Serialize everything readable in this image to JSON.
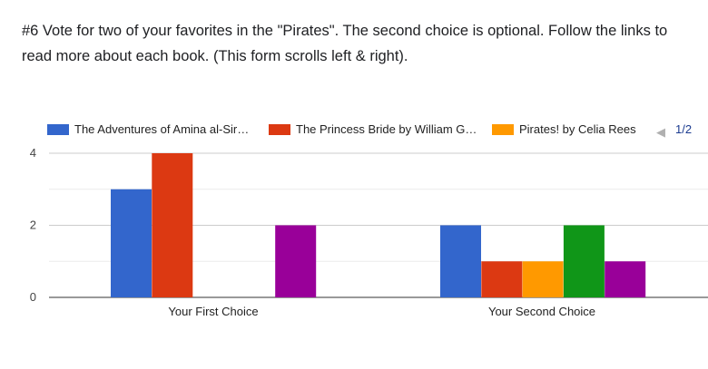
{
  "question": {
    "text": "#6 Vote for two of your favorites in the \"Pirates\". The second choice is optional.  Follow the links to read more about each book.  (This form scrolls left & right)."
  },
  "legend": {
    "items": [
      {
        "label": "The Adventures of Amina al-Sir…",
        "color": "#3366cc"
      },
      {
        "label": "The Princess Bride by William G…",
        "color": "#dc3912"
      },
      {
        "label": "Pirates! by Celia Rees",
        "color": "#ff9900"
      }
    ],
    "pager": {
      "prev_icon": "triangle-left-icon",
      "text": "1/2",
      "next_icon": "triangle-right-icon"
    }
  },
  "chart_data": {
    "type": "bar",
    "categories": [
      "Your First Choice",
      "Your Second Choice"
    ],
    "series": [
      {
        "name": "The Adventures of Amina al-Sir…",
        "color": "#3366cc",
        "values": [
          3,
          2
        ]
      },
      {
        "name": "The Princess Bride by William G…",
        "color": "#dc3912",
        "values": [
          4,
          1
        ]
      },
      {
        "name": "Pirates! by Celia Rees",
        "color": "#ff9900",
        "values": [
          0,
          1
        ]
      },
      {
        "color": "#109618",
        "values": [
          0,
          2
        ]
      },
      {
        "color": "#990099",
        "values": [
          2,
          1
        ]
      }
    ],
    "yticks": [
      0,
      2,
      4
    ],
    "ylim": [
      0,
      4
    ],
    "grid": true,
    "legend_position": "top"
  }
}
